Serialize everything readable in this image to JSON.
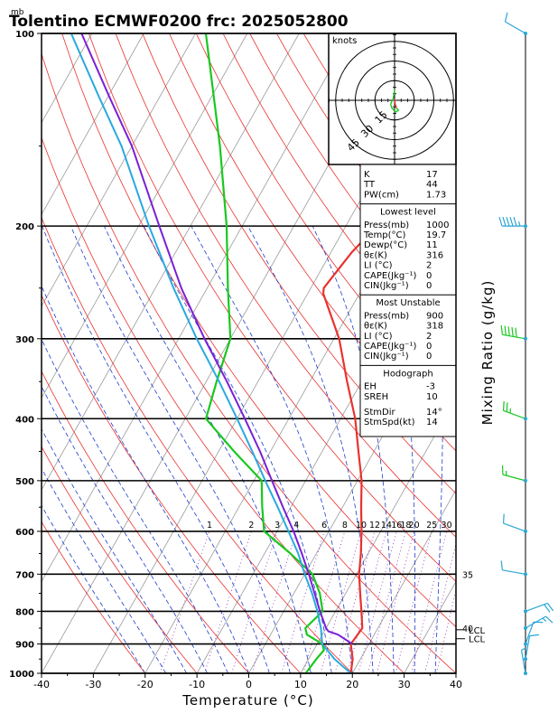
{
  "header": {
    "title": "Tolentino ECMWF0200  frc: 2025052800",
    "unit_mb": "mb"
  },
  "chart_data": {
    "type": "line",
    "title": "Tolentino ECMWF0200  frc: 2025052800",
    "xlabel": "Temperature (°C)",
    "ylabel": "mb",
    "right_label": "Mixing Ratio (g/kg)",
    "x_ticks": [
      -40,
      -30,
      -20,
      -10,
      0,
      10,
      20,
      30,
      40
    ],
    "y_ticks": [
      100,
      200,
      300,
      400,
      500,
      600,
      700,
      800,
      900,
      1000
    ],
    "xlim": [
      -40,
      40
    ],
    "ylim": [
      1000,
      100
    ],
    "y_scale": "log",
    "mixing_ratio_labels": [
      "1",
      "2",
      "3",
      "4",
      "6",
      "8",
      "10",
      "12",
      "14",
      "16",
      "18",
      "20",
      "25",
      "30",
      "35",
      "40"
    ],
    "series": [
      {
        "name": "Temperature",
        "color": "#e8322e",
        "points": [
          [
            1000,
            19.7
          ],
          [
            950,
            18.5
          ],
          [
            900,
            16.5
          ],
          [
            850,
            17.0
          ],
          [
            800,
            15.0
          ],
          [
            750,
            12.8
          ],
          [
            700,
            10.5
          ],
          [
            650,
            8.6
          ],
          [
            600,
            6.3
          ],
          [
            550,
            3.6
          ],
          [
            500,
            0.8
          ],
          [
            450,
            -3.0
          ],
          [
            400,
            -7.2
          ],
          [
            350,
            -12.8
          ],
          [
            300,
            -19.0
          ],
          [
            255,
            -27.0
          ],
          [
            250,
            -27.5
          ],
          [
            220,
            -26.0
          ],
          [
            200,
            -24.0
          ],
          [
            150,
            -21.0
          ],
          [
            125,
            -20.0
          ],
          [
            100,
            -18.0
          ]
        ]
      },
      {
        "name": "Dewpoint",
        "color": "#19c81e",
        "points": [
          [
            1000,
            11.0
          ],
          [
            950,
            11.5
          ],
          [
            920,
            12.0
          ],
          [
            900,
            11.0
          ],
          [
            870,
            7.0
          ],
          [
            850,
            6.0
          ],
          [
            800,
            7.5
          ],
          [
            750,
            5.0
          ],
          [
            700,
            1.5
          ],
          [
            650,
            -5.0
          ],
          [
            600,
            -12.5
          ],
          [
            550,
            -15.5
          ],
          [
            500,
            -18.5
          ],
          [
            450,
            -27.0
          ],
          [
            400,
            -36.0
          ],
          [
            350,
            -38.0
          ],
          [
            300,
            -40.0
          ],
          [
            250,
            -46.0
          ],
          [
            200,
            -53.0
          ],
          [
            150,
            -63.0
          ],
          [
            100,
            -78.0
          ]
        ]
      },
      {
        "name": "Parcel (virtual)",
        "color": "#7a1fd6",
        "points": [
          [
            900,
            16.8
          ],
          [
            870,
            13.0
          ],
          [
            860,
            10.8
          ],
          [
            850,
            10.0
          ],
          [
            800,
            7.0
          ],
          [
            750,
            4.0
          ],
          [
            700,
            0.8
          ],
          [
            650,
            -2.8
          ],
          [
            600,
            -6.8
          ],
          [
            550,
            -11.5
          ],
          [
            500,
            -16.5
          ],
          [
            450,
            -22.0
          ],
          [
            400,
            -28.5
          ],
          [
            350,
            -36.0
          ],
          [
            300,
            -45.0
          ],
          [
            250,
            -55.0
          ],
          [
            200,
            -66.0
          ],
          [
            150,
            -80.0
          ],
          [
            125,
            -90.0
          ],
          [
            100,
            -102.0
          ]
        ]
      },
      {
        "name": "Parcel",
        "color": "#29a9e0",
        "points": [
          [
            1000,
            19.7
          ],
          [
            950,
            15.0
          ],
          [
            900,
            11.0
          ],
          [
            850,
            9.0
          ],
          [
            800,
            6.5
          ],
          [
            750,
            3.5
          ],
          [
            700,
            0.0
          ],
          [
            650,
            -3.5
          ],
          [
            600,
            -7.8
          ],
          [
            550,
            -12.5
          ],
          [
            500,
            -17.8
          ],
          [
            450,
            -23.5
          ],
          [
            400,
            -30.0
          ],
          [
            350,
            -37.5
          ],
          [
            300,
            -46.5
          ],
          [
            250,
            -56.5
          ],
          [
            200,
            -68.0
          ],
          [
            150,
            -82.0
          ],
          [
            125,
            -92.0
          ],
          [
            100,
            -104.0
          ]
        ]
      }
    ],
    "lcl_labels": [
      {
        "pressure": 855,
        "text": "LCL"
      },
      {
        "pressure": 883,
        "text": "LCL"
      }
    ],
    "wind_barbs": [
      {
        "pressure": 1000,
        "dir": 350,
        "spd": 5
      },
      {
        "pressure": 950,
        "dir": 10,
        "spd": 10
      },
      {
        "pressure": 900,
        "dir": 20,
        "spd": 10
      },
      {
        "pressure": 850,
        "dir": 60,
        "spd": 15
      },
      {
        "pressure": 800,
        "dir": 70,
        "spd": 20
      },
      {
        "pressure": 700,
        "dir": 280,
        "spd": 10
      },
      {
        "pressure": 600,
        "dir": 290,
        "spd": 10
      },
      {
        "pressure": 500,
        "dir": 285,
        "spd": 15
      },
      {
        "pressure": 400,
        "dir": 290,
        "spd": 25
      },
      {
        "pressure": 300,
        "dir": 280,
        "spd": 50
      },
      {
        "pressure": 200,
        "dir": 270,
        "spd": 55
      },
      {
        "pressure": 100,
        "dir": 300,
        "spd": 10
      }
    ],
    "hodograph": {
      "label": "knots",
      "ring_labels": [
        "15",
        "30",
        "45"
      ],
      "points": [
        [
          0,
          1
        ],
        [
          0.5,
          -3
        ],
        [
          1.5,
          -6
        ],
        [
          3,
          -7.5
        ],
        [
          1,
          -9
        ],
        [
          -2,
          -6
        ],
        [
          -3,
          -3
        ],
        [
          -1,
          1.5
        ],
        [
          0,
          8
        ]
      ]
    }
  },
  "stats": {
    "top": [
      {
        "label": "K",
        "value": "17"
      },
      {
        "label": "TT",
        "value": "44"
      },
      {
        "label": "PW(cm)",
        "value": "1.73"
      }
    ],
    "lowest_level": {
      "title": "Lowest level",
      "rows": [
        {
          "label": "Press(mb)",
          "value": "1000"
        },
        {
          "label": "Temp(°C)",
          "value": "19.7"
        },
        {
          "label": "Dewp(°C)",
          "value": "11"
        },
        {
          "label": "θε(K)",
          "value": "316"
        },
        {
          "label": "LI (°C)",
          "value": "2"
        },
        {
          "label": "CAPE(Jkg⁻¹)",
          "value": "0"
        },
        {
          "label": "CIN(Jkg⁻¹)",
          "value": "0"
        }
      ]
    },
    "most_unstable": {
      "title": "Most Unstable",
      "rows": [
        {
          "label": "Press(mb)",
          "value": "900"
        },
        {
          "label": "θε(K)",
          "value": "318"
        },
        {
          "label": "LI (°C)",
          "value": "2"
        },
        {
          "label": "CAPE(Jkg⁻¹)",
          "value": "0"
        },
        {
          "label": "CIN(Jkg⁻¹)",
          "value": "0"
        }
      ]
    },
    "hodograph": {
      "title": "Hodograph",
      "rows": [
        {
          "label": "EH",
          "value": "-3"
        },
        {
          "label": "SREH",
          "value": "10"
        },
        {
          "label": "StmDir",
          "value": "14°"
        },
        {
          "label": "StmSpd(kt)",
          "value": "14"
        }
      ]
    }
  },
  "colors": {
    "isotherm": "#9a9a9a",
    "dry_adiabat": "#e8322e",
    "moist_adiabat": "#1e3ccc",
    "mixing_ratio": "#8a2bb0",
    "wind": "#2aa6d6",
    "wind_flag_green": "#19c81e"
  }
}
